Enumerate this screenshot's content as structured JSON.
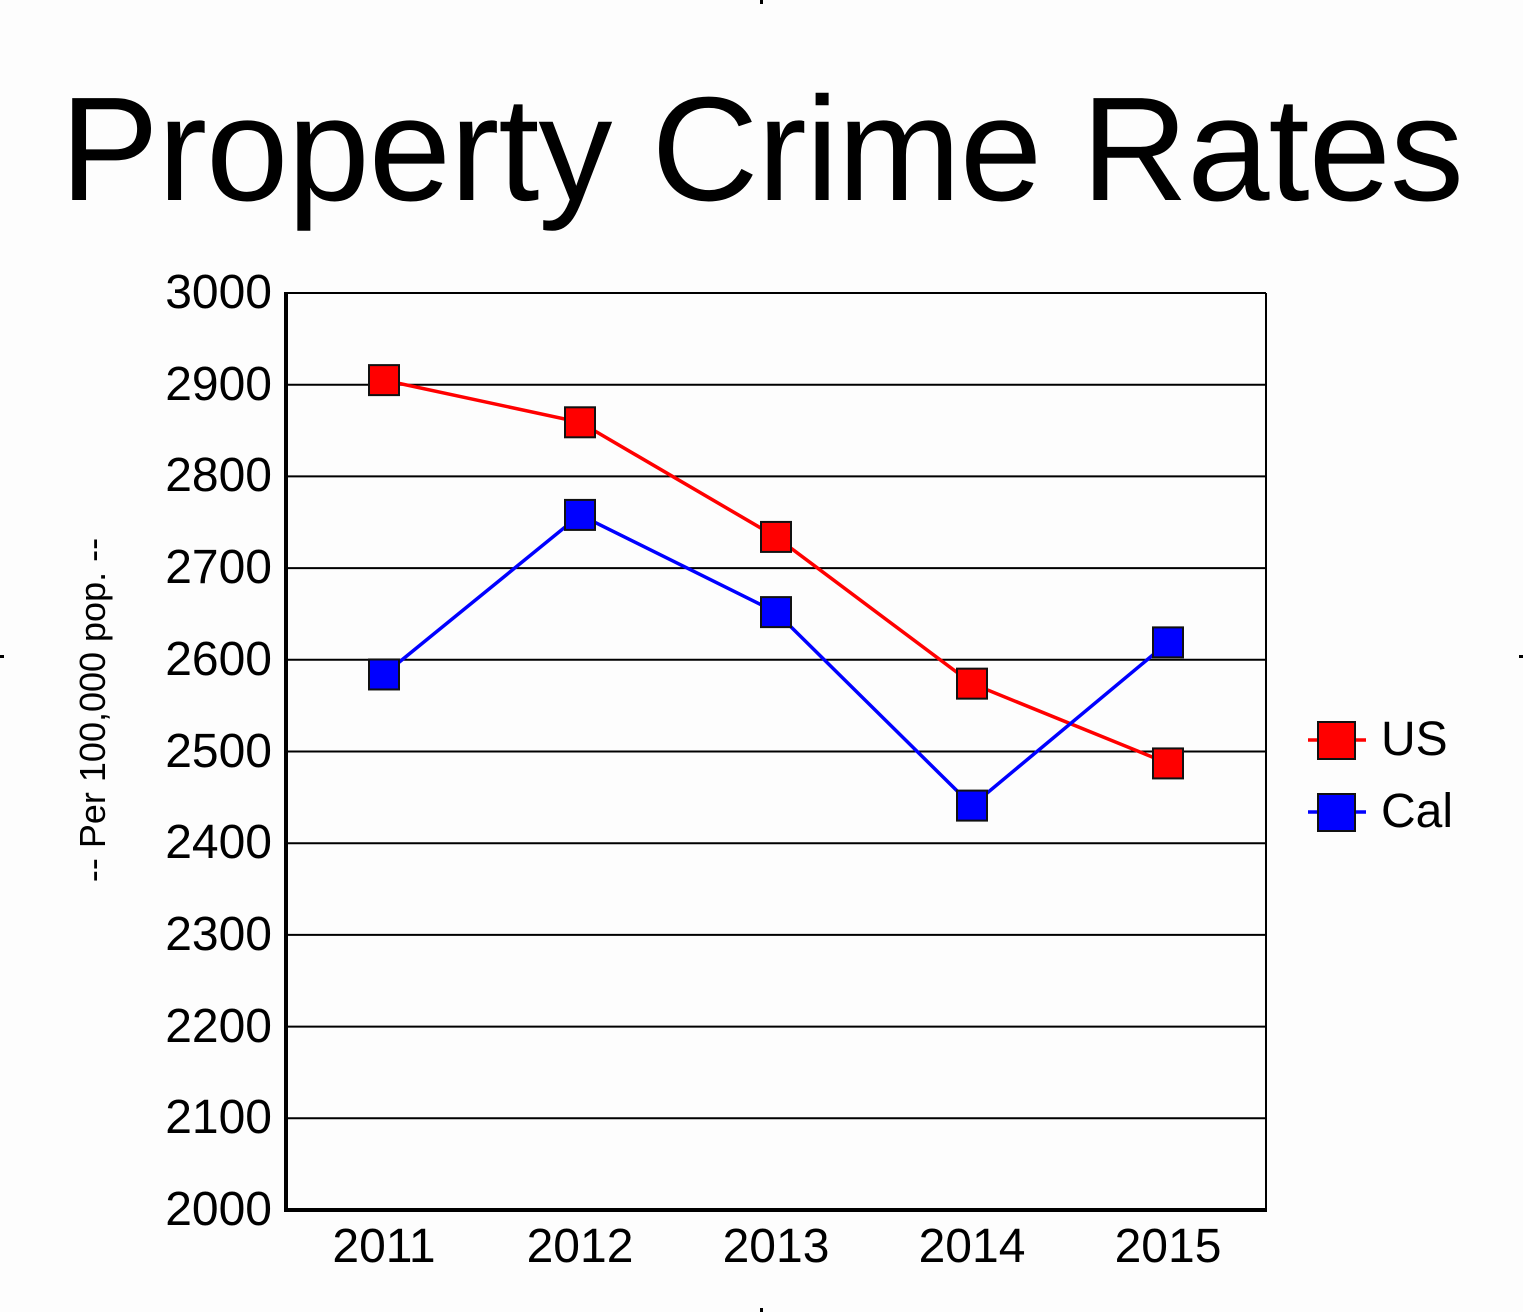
{
  "chart_data": {
    "type": "line",
    "title": "Property Crime Rates",
    "xlabel": "",
    "ylabel": "-- Per 100,000 pop. --",
    "categories": [
      "2011",
      "2012",
      "2013",
      "2014",
      "2015"
    ],
    "series": [
      {
        "name": "US",
        "color": "#ff0000",
        "values": [
          2905,
          2859,
          2734,
          2574,
          2487
        ]
      },
      {
        "name": "Cal",
        "color": "#0000ff",
        "values": [
          2584,
          2758,
          2652,
          2441,
          2619
        ]
      }
    ],
    "ylim": [
      2000,
      3000
    ],
    "yticks": [
      "3000",
      "2900",
      "2800",
      "2700",
      "2600",
      "2500",
      "2400",
      "2300",
      "2200",
      "2100",
      "2000"
    ],
    "grid": true,
    "legend_position": "right",
    "marker": "square"
  },
  "labels": {
    "title": "Property Crime Rates",
    "ylabel": "-- Per 100,000 pop. --"
  }
}
